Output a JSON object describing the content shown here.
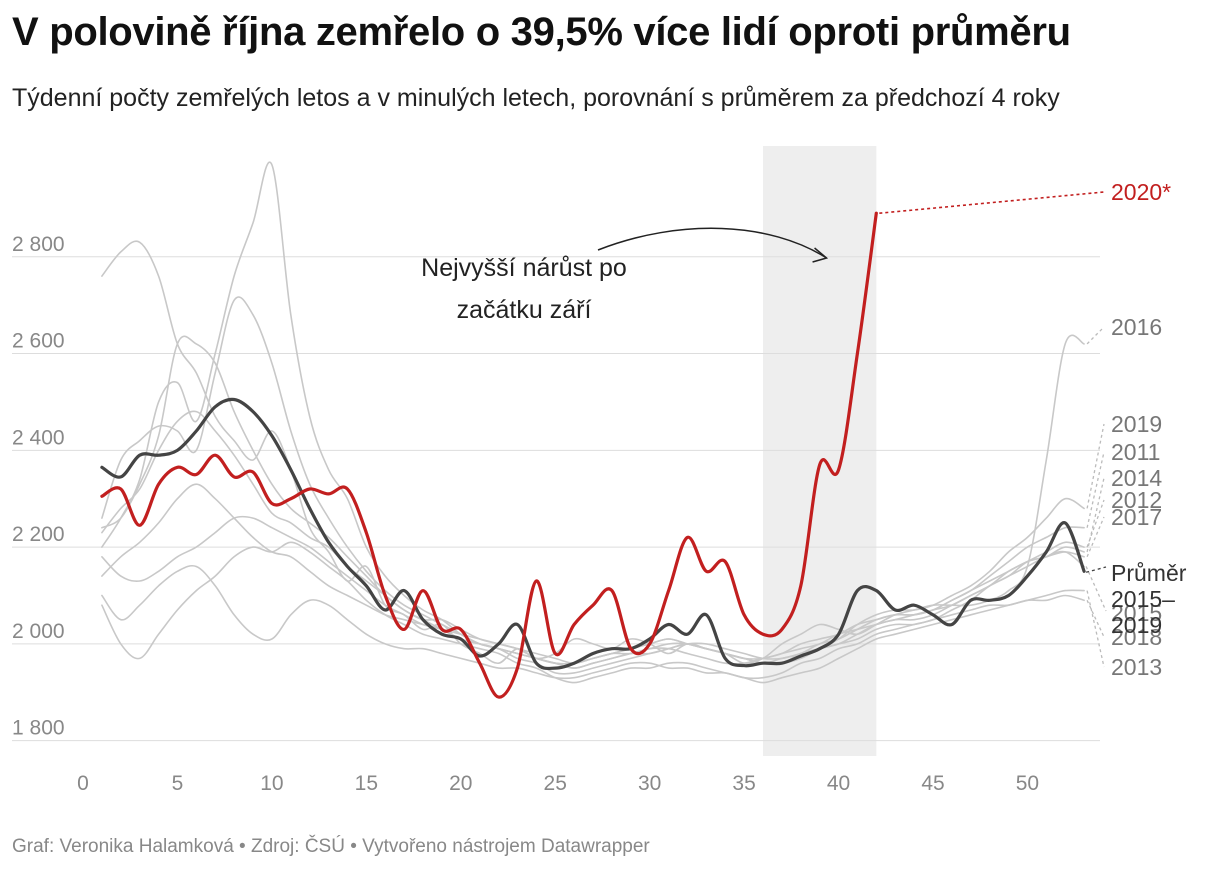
{
  "header": {
    "title": "V polovině října zemřelo o 39,5% více lidí oproti průměru",
    "subtitle": "Týdenní počty zemřelých letos a v minulých letech, porovnání s průměrem za předchozí 4 roky"
  },
  "footer": {
    "text": "Graf: Veronika Halamková • Zdroj: ČSÚ • Vytvořeno nástrojem Datawrapper"
  },
  "colors": {
    "highlight": "#c21f1f",
    "average": "#444444",
    "years": "#c8c8c8",
    "grid": "#dddddd",
    "band": "#eeeeee"
  },
  "chart_data": {
    "type": "line",
    "title": "V polovině října zemřelo o 39,5% více lidí oproti průměru",
    "xlabel": "",
    "ylabel": "",
    "xlim": [
      0,
      54
    ],
    "ylim": [
      1760,
      3000
    ],
    "x_ticks": [
      0,
      5,
      10,
      15,
      20,
      25,
      30,
      35,
      40,
      45,
      50
    ],
    "y_ticks": [
      1800,
      2000,
      2200,
      2400,
      2600,
      2800
    ],
    "y_tick_labels": [
      "1 800",
      "2 000",
      "2 200",
      "2 400",
      "2 600",
      "2 800"
    ],
    "highlight_band": [
      36,
      42
    ],
    "annotation": {
      "lines": [
        "Nejvyšší nárůst po",
        "začátku září"
      ],
      "arrow_to_week": 40
    },
    "series": [
      {
        "name": "2016",
        "label": "2016",
        "role": "year",
        "start_week": 1,
        "values": [
          2760,
          2810,
          2830,
          2760,
          2620,
          2560,
          2470,
          2420,
          2380,
          2440,
          2360,
          2240,
          2190,
          2130,
          2160,
          2080,
          2060,
          2030,
          2040,
          2000,
          1980,
          1960,
          1990,
          1970,
          1980,
          2010,
          2000,
          1990,
          2010,
          2000,
          1980,
          2000,
          1990,
          1980,
          1960,
          1970,
          2000,
          2020,
          2040,
          2030,
          2020,
          2040,
          2060,
          2070,
          2080,
          2080,
          2080,
          2090,
          2110,
          2160,
          2380,
          2620,
          2620
        ]
      },
      {
        "name": "2019",
        "label": "2019",
        "role": "year",
        "start_week": 1,
        "values": [
          2230,
          2280,
          2320,
          2400,
          2460,
          2480,
          2440,
          2390,
          2330,
          2270,
          2250,
          2220,
          2200,
          2160,
          2130,
          2100,
          2070,
          2050,
          2050,
          2030,
          2010,
          2000,
          1990,
          1980,
          1970,
          1960,
          1970,
          1980,
          1990,
          2000,
          2010,
          2000,
          1990,
          1980,
          1970,
          1960,
          1960,
          1970,
          1990,
          2010,
          2040,
          2060,
          2070,
          2070,
          2080,
          2100,
          2120,
          2150,
          2190,
          2220,
          2260,
          2300,
          2280
        ]
      },
      {
        "name": "2011",
        "label": "2011",
        "role": "year",
        "start_week": 1,
        "values": [
          2140,
          2180,
          2210,
          2250,
          2300,
          2330,
          2300,
          2260,
          2220,
          2190,
          2180,
          2150,
          2120,
          2100,
          2080,
          2060,
          2050,
          2040,
          2030,
          2020,
          2010,
          2000,
          1990,
          1970,
          1960,
          1950,
          1960,
          1970,
          1980,
          1990,
          2000,
          2000,
          1990,
          1980,
          1970,
          1960,
          1970,
          1980,
          2000,
          2010,
          2030,
          2050,
          2060,
          2060,
          2070,
          2090,
          2110,
          2140,
          2170,
          2200,
          2220,
          2240,
          2240
        ]
      },
      {
        "name": "2014",
        "label": "2014",
        "role": "year",
        "start_week": 1,
        "values": [
          2100,
          2050,
          2080,
          2120,
          2150,
          2160,
          2120,
          2060,
          2020,
          2010,
          2060,
          2090,
          2080,
          2050,
          2020,
          2000,
          1990,
          1990,
          1980,
          1970,
          1960,
          1950,
          1950,
          1940,
          1930,
          1930,
          1940,
          1950,
          1960,
          1960,
          1950,
          1950,
          1940,
          1940,
          1930,
          1930,
          1940,
          1960,
          1970,
          1990,
          2000,
          2020,
          2030,
          2040,
          2050,
          2070,
          2090,
          2120,
          2140,
          2170,
          2180,
          2200,
          2190
        ]
      },
      {
        "name": "2012",
        "label": "2012",
        "role": "year",
        "start_week": 1,
        "values": [
          2180,
          2140,
          2130,
          2150,
          2180,
          2200,
          2230,
          2260,
          2260,
          2240,
          2220,
          2200,
          2170,
          2140,
          2110,
          2080,
          2060,
          2040,
          2030,
          2010,
          2000,
          1990,
          1980,
          1970,
          1960,
          1960,
          1970,
          1980,
          1990,
          2000,
          2010,
          2000,
          1990,
          1980,
          1970,
          1970,
          1980,
          1990,
          2000,
          2020,
          2030,
          2040,
          2050,
          2050,
          2060,
          2080,
          2100,
          2120,
          2150,
          2170,
          2190,
          2210,
          2200
        ]
      },
      {
        "name": "2017",
        "label": "2017",
        "role": "year",
        "start_week": 1,
        "values": [
          2260,
          2380,
          2420,
          2450,
          2440,
          2400,
          2560,
          2710,
          2680,
          2580,
          2440,
          2330,
          2260,
          2200,
          2150,
          2110,
          2080,
          2060,
          2040,
          2020,
          2000,
          1990,
          1980,
          1970,
          1960,
          1960,
          1970,
          1980,
          1980,
          1990,
          1990,
          1980,
          1970,
          1960,
          1960,
          1970,
          1980,
          2000,
          2010,
          2020,
          2040,
          2050,
          2060,
          2060,
          2070,
          2090,
          2110,
          2130,
          2150,
          2170,
          2180,
          2190,
          2180
        ]
      },
      {
        "name": "2015",
        "label": "2015",
        "role": "year",
        "start_week": 1,
        "values": [
          2200,
          2260,
          2340,
          2500,
          2540,
          2460,
          2600,
          2760,
          2870,
          2990,
          2680,
          2470,
          2360,
          2300,
          2200,
          2140,
          2100,
          2070,
          2050,
          2020,
          2000,
          1990,
          1980,
          1970,
          1960,
          1950,
          1960,
          1970,
          1980,
          1980,
          1990,
          2000,
          1990,
          1980,
          1970,
          1960,
          1960,
          1980,
          1990,
          2000,
          2020,
          2040,
          2050,
          2060,
          2070,
          2080,
          2100,
          2120,
          2140,
          2160,
          2180,
          2190,
          2160
        ]
      },
      {
        "name": "2018",
        "label": "2018",
        "role": "year",
        "start_week": 1,
        "values": [
          2240,
          2260,
          2330,
          2430,
          2620,
          2620,
          2580,
          2480,
          2400,
          2330,
          2280,
          2250,
          2220,
          2180,
          2140,
          2100,
          2070,
          2050,
          2030,
          2010,
          2000,
          1990,
          1970,
          1960,
          1940,
          1940,
          1950,
          1960,
          1970,
          1980,
          1990,
          2000,
          2000,
          1990,
          1980,
          1970,
          1970,
          1980,
          1990,
          2000,
          2010,
          2030,
          2040,
          2040,
          2050,
          2060,
          2070,
          2080,
          2080,
          2090,
          2090,
          2100,
          2090
        ]
      },
      {
        "name": "2013",
        "label": "2013",
        "role": "year",
        "start_week": 1,
        "values": [
          2080,
          2000,
          1970,
          2020,
          2070,
          2110,
          2140,
          2180,
          2200,
          2190,
          2210,
          2190,
          2160,
          2130,
          2090,
          2060,
          2040,
          2020,
          2010,
          2000,
          1990,
          1980,
          1960,
          1950,
          1930,
          1920,
          1930,
          1940,
          1950,
          1950,
          1960,
          1960,
          1950,
          1940,
          1930,
          1920,
          1930,
          1940,
          1950,
          1970,
          1990,
          2010,
          2020,
          2030,
          2040,
          2050,
          2060,
          2070,
          2080,
          2090,
          2100,
          2110,
          2110
        ]
      },
      {
        "name": "Průměr 2015–2019",
        "label": "Průměr 2015–2019",
        "role": "average",
        "start_week": 1,
        "values": [
          2365,
          2345,
          2390,
          2390,
          2400,
          2440,
          2490,
          2505,
          2480,
          2430,
          2360,
          2280,
          2210,
          2160,
          2120,
          2070,
          2110,
          2050,
          2020,
          2010,
          1975,
          2000,
          2040,
          1960,
          1950,
          1960,
          1980,
          1990,
          1990,
          2010,
          2040,
          2020,
          2060,
          1970,
          1955,
          1960,
          1960,
          1975,
          1990,
          2020,
          2110,
          2110,
          2070,
          2080,
          2060,
          2040,
          2090,
          2090,
          2100,
          2140,
          2190,
          2250,
          2150
        ]
      },
      {
        "name": "2020*",
        "label": "2020*",
        "role": "highlight",
        "start_week": 1,
        "values": [
          2305,
          2320,
          2245,
          2330,
          2365,
          2350,
          2390,
          2345,
          2355,
          2290,
          2300,
          2320,
          2310,
          2320,
          2230,
          2100,
          2030,
          2110,
          2030,
          2030,
          1960,
          1890,
          1950,
          2130,
          1980,
          2040,
          2080,
          2110,
          1990,
          2000,
          2110,
          2220,
          2150,
          2170,
          2060,
          2020,
          2030,
          2120,
          2370,
          2360,
          2600,
          2890
        ]
      }
    ]
  }
}
